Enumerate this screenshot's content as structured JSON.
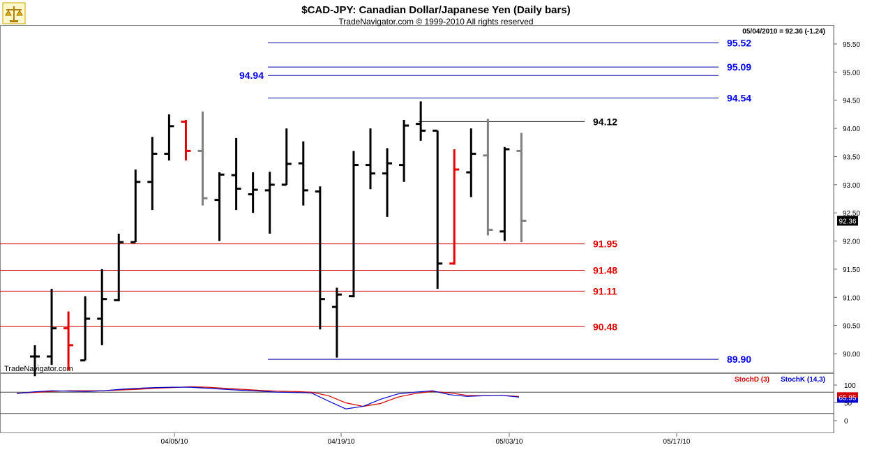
{
  "header": {
    "title": "$CAD-JPY:  Canadian Dollar/Japanese Yen  (Daily bars)",
    "subtitle": "TradeNavigator.com © 1999-2010 All rights reserved",
    "last_info": "05/04/2010 = 92.36 (-1.24)",
    "watermark": "TradeNavigator.com"
  },
  "logo_icon": "scales-icon",
  "colors": {
    "up_bar": "#000000",
    "down_bar": "#e00000",
    "pending_bar": "#808080",
    "support_line": "#d00000",
    "projection_line": "#0000aa",
    "stoch_d": "#d00000",
    "stoch_k": "#0000cc"
  },
  "chart_data": [
    {
      "type": "ohlc",
      "ylim": [
        89.7,
        95.8
      ],
      "y_ticks": [
        "95.50",
        "95.00",
        "94.50",
        "94.00",
        "93.50",
        "93.00",
        "92.50",
        "92.00",
        "91.50",
        "91.00",
        "90.50",
        "90.00"
      ],
      "x_ticks": [
        "04/05/10",
        "04/19/10",
        "05/03/10",
        "05/17/10"
      ],
      "last_price": "92.36",
      "bars": [
        {
          "h": 90.15,
          "l": 89.6,
          "o": 89.95,
          "c": 89.95,
          "color": "black"
        },
        {
          "h": 91.15,
          "l": 89.8,
          "o": 89.95,
          "c": 90.45,
          "color": "black"
        },
        {
          "h": 90.75,
          "l": 89.7,
          "o": 90.45,
          "c": 90.15,
          "color": "red"
        },
        {
          "h": 91.02,
          "l": 89.88,
          "o": 89.88,
          "c": 90.62,
          "color": "black"
        },
        {
          "h": 91.5,
          "l": 90.15,
          "o": 90.62,
          "c": 90.97,
          "color": "black"
        },
        {
          "h": 92.13,
          "l": 90.93,
          "o": 90.95,
          "c": 91.98,
          "color": "black"
        },
        {
          "h": 93.27,
          "l": 91.98,
          "o": 91.98,
          "c": 93.05,
          "color": "black"
        },
        {
          "h": 93.85,
          "l": 92.55,
          "o": 93.05,
          "c": 93.55,
          "color": "black"
        },
        {
          "h": 94.25,
          "l": 93.43,
          "o": 93.55,
          "c": 94.04,
          "color": "black"
        },
        {
          "h": 94.15,
          "l": 93.43,
          "o": 94.12,
          "c": 93.6,
          "color": "red"
        },
        {
          "h": 94.3,
          "l": 92.63,
          "o": 93.6,
          "c": 92.76,
          "color": "gray"
        },
        {
          "h": 93.22,
          "l": 92.0,
          "o": 92.73,
          "c": 93.18,
          "color": "black"
        },
        {
          "h": 93.83,
          "l": 92.55,
          "o": 93.17,
          "c": 92.93,
          "color": "black"
        },
        {
          "h": 93.22,
          "l": 92.5,
          "o": 92.83,
          "c": 92.91,
          "color": "black"
        },
        {
          "h": 93.23,
          "l": 92.13,
          "o": 92.9,
          "c": 93.0,
          "color": "black"
        },
        {
          "h": 94.0,
          "l": 93.0,
          "o": 93.0,
          "c": 93.37,
          "color": "black"
        },
        {
          "h": 93.77,
          "l": 92.63,
          "o": 93.38,
          "c": 92.9,
          "color": "black"
        },
        {
          "h": 92.97,
          "l": 90.43,
          "o": 92.88,
          "c": 90.97,
          "color": "black"
        },
        {
          "h": 91.17,
          "l": 89.93,
          "o": 90.83,
          "c": 91.05,
          "color": "black"
        },
        {
          "h": 93.6,
          "l": 91.0,
          "o": 91.02,
          "c": 93.35,
          "color": "black"
        },
        {
          "h": 94.0,
          "l": 92.92,
          "o": 93.35,
          "c": 93.2,
          "color": "black"
        },
        {
          "h": 93.65,
          "l": 92.43,
          "o": 93.2,
          "c": 93.38,
          "color": "black"
        },
        {
          "h": 94.15,
          "l": 93.05,
          "o": 93.35,
          "c": 94.05,
          "color": "black"
        },
        {
          "h": 94.48,
          "l": 93.78,
          "o": 94.08,
          "c": 93.96,
          "color": "black"
        },
        {
          "h": 93.96,
          "l": 91.15,
          "o": 93.96,
          "c": 91.6,
          "color": "black"
        },
        {
          "h": 93.63,
          "l": 91.58,
          "o": 91.6,
          "c": 93.27,
          "color": "red"
        },
        {
          "h": 94.0,
          "l": 92.78,
          "o": 93.22,
          "c": 93.55,
          "color": "black"
        },
        {
          "h": 94.17,
          "l": 92.1,
          "o": 93.52,
          "c": 92.2,
          "color": "gray"
        },
        {
          "h": 93.67,
          "l": 92.0,
          "o": 92.17,
          "c": 93.63,
          "color": "black"
        },
        {
          "h": 93.92,
          "l": 91.98,
          "o": 93.6,
          "c": 92.36,
          "color": "gray"
        }
      ],
      "levels": [
        {
          "value": 95.52,
          "label": "95.52",
          "color": "blue"
        },
        {
          "value": 95.09,
          "label": "95.09",
          "color": "blue"
        },
        {
          "value": 94.94,
          "label": "94.94",
          "color": "blue"
        },
        {
          "value": 94.54,
          "label": "94.54",
          "color": "blue"
        },
        {
          "value": 94.12,
          "label": "94.12",
          "color": "black"
        },
        {
          "value": 91.95,
          "label": "91.95",
          "color": "red"
        },
        {
          "value": 91.48,
          "label": "91.48",
          "color": "red"
        },
        {
          "value": 91.11,
          "label": "91.11",
          "color": "red"
        },
        {
          "value": 90.48,
          "label": "90.48",
          "color": "red"
        },
        {
          "value": 89.9,
          "label": "89.90",
          "color": "blue"
        }
      ]
    },
    {
      "type": "line",
      "ylim": [
        0,
        100
      ],
      "y_ticks": [
        "100",
        "50",
        "0"
      ],
      "reference_lines": [
        80,
        20
      ],
      "last_value": "65.95",
      "series": [
        {
          "name": "StochD (3)",
          "values": [
            77,
            79,
            82,
            84,
            84,
            84,
            86,
            88,
            91,
            93,
            95,
            94,
            91,
            88,
            85,
            83,
            82,
            80,
            70,
            50,
            40,
            48,
            66,
            76,
            82,
            78,
            71,
            70,
            71,
            68
          ]
        },
        {
          "name": "StochK (14,3)",
          "values": [
            76,
            81,
            84,
            83,
            82,
            84,
            88,
            91,
            93,
            94,
            94,
            91,
            88,
            85,
            83,
            80,
            79,
            78,
            55,
            33,
            40,
            60,
            75,
            80,
            84,
            73,
            68,
            70,
            71,
            66
          ]
        }
      ]
    }
  ]
}
